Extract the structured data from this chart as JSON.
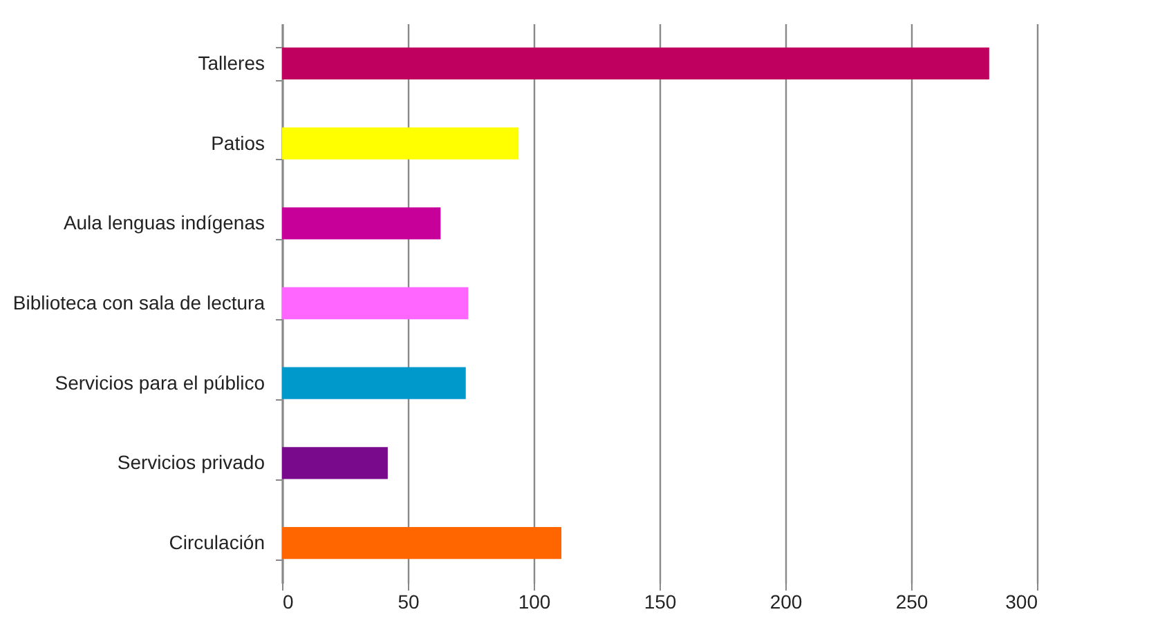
{
  "chart_data": {
    "type": "bar",
    "orientation": "horizontal",
    "categories": [
      "Talleres",
      "Patios",
      "Aula lenguas indígenas",
      "Biblioteca con sala de lectura",
      "Servicios para el público",
      "Servicios privado",
      "Circulación"
    ],
    "values": [
      281,
      94,
      63,
      74,
      73,
      42,
      111
    ],
    "colors": [
      "#c0005e",
      "#ffff00",
      "#c8009a",
      "#ff66ff",
      "#0099cc",
      "#7a0a8c",
      "#ff6600"
    ],
    "xlim": [
      0,
      300
    ],
    "xticks": [
      0,
      50,
      100,
      150,
      200,
      250,
      300
    ],
    "grid": "x",
    "legend": false
  }
}
